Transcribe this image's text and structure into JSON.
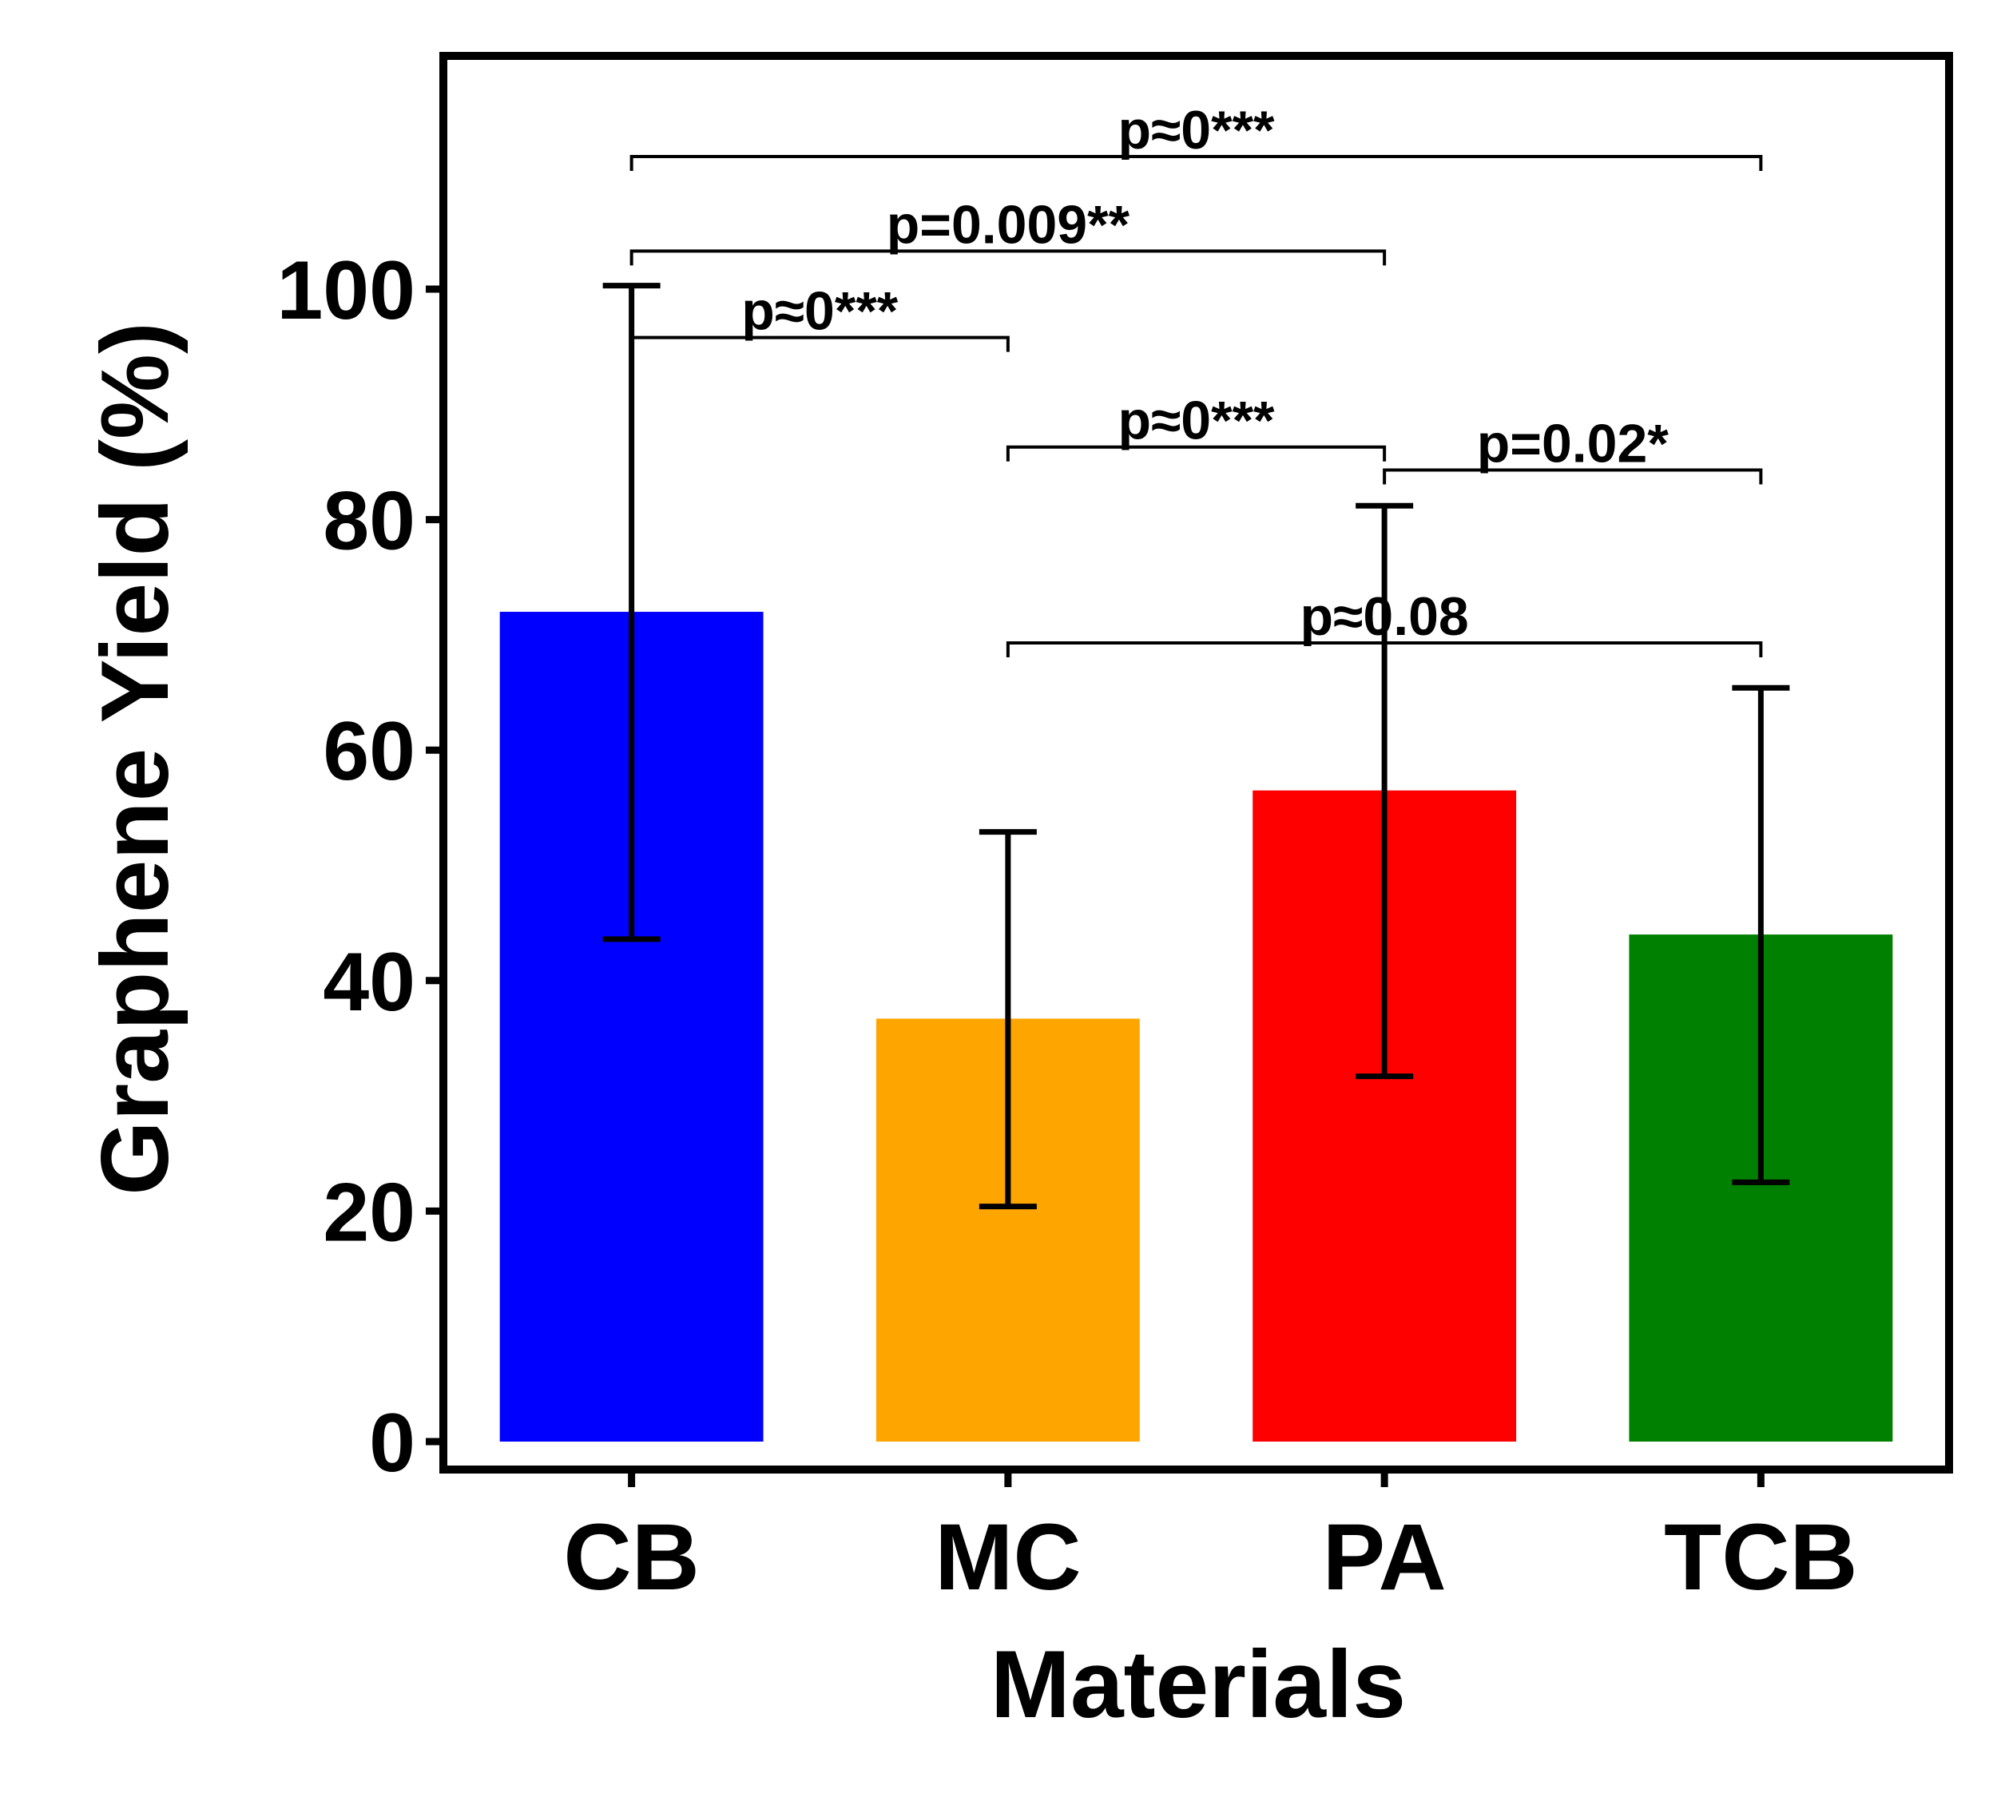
{
  "chart_data": {
    "type": "bar",
    "xlabel": "Materials",
    "ylabel": "Graphene Yield (%)",
    "ylim": [
      -2,
      122
    ],
    "yticks": [
      0,
      20,
      40,
      60,
      80,
      100
    ],
    "categories": [
      "CB",
      "MC",
      "PA",
      "TCB"
    ],
    "values": [
      72,
      36.7,
      56.5,
      44
    ],
    "error_lower": [
      43.6,
      20.4,
      31.7,
      22.5
    ],
    "error_upper": [
      100.3,
      52.9,
      81.2,
      65.4
    ],
    "colors": [
      "#0000ff",
      "#ffa500",
      "#ff0000",
      "#008000"
    ],
    "grid": false,
    "legend": "none",
    "comparisons": [
      {
        "from": "CB",
        "to": "MC",
        "label": "p≈0***",
        "y": 95.8
      },
      {
        "from": "CB",
        "to": "PA",
        "label": "p=0.009**",
        "y": 103.3
      },
      {
        "from": "CB",
        "to": "TCB",
        "label": "p≈0***",
        "y": 111.5
      },
      {
        "from": "MC",
        "to": "PA",
        "label": "p≈0***",
        "y": 86.3
      },
      {
        "from": "PA",
        "to": "TCB",
        "label": "p=0.02*",
        "y": 84.3
      },
      {
        "from": "MC",
        "to": "TCB",
        "label": "p≈0.08",
        "y": 69.3
      }
    ]
  }
}
